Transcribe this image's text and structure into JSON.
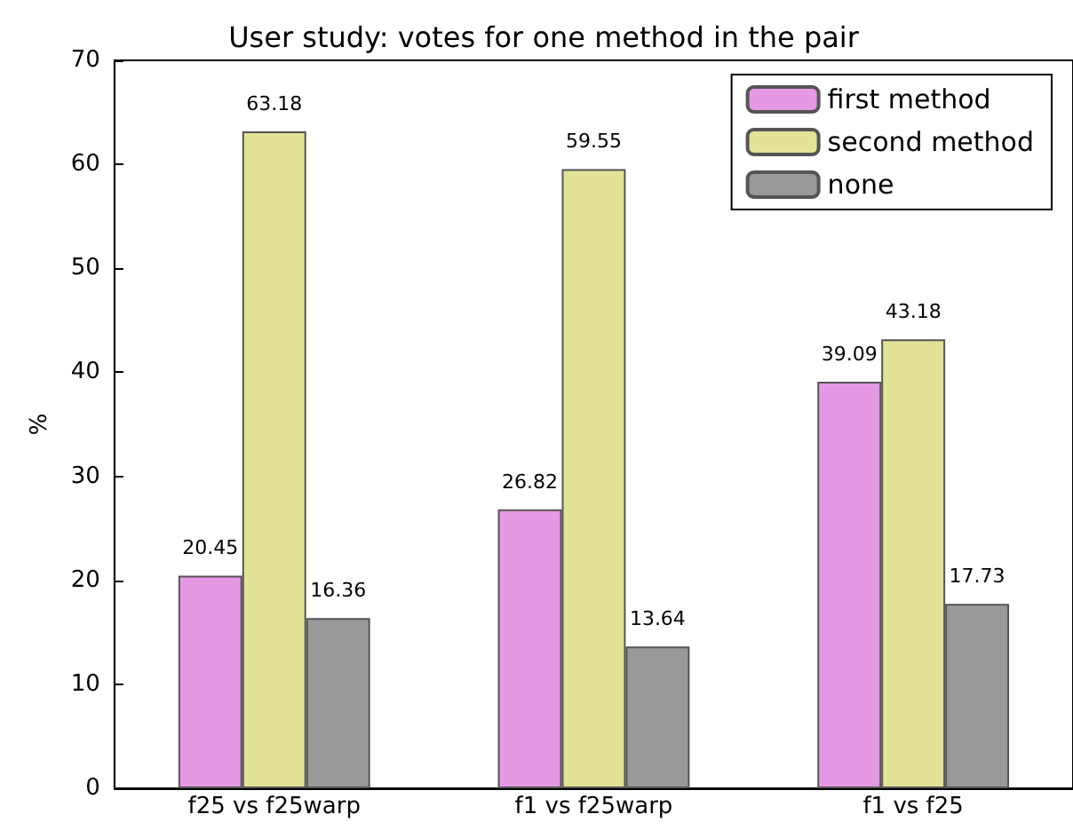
{
  "chart_data": {
    "type": "bar",
    "title": "User study: votes for one method in the pair",
    "ylabel": "%",
    "categories": [
      "f25 vs f25warp",
      "f1 vs f25warp",
      "f1 vs f25"
    ],
    "series": [
      {
        "name": "first method",
        "color": "#e599e3",
        "values": [
          20.45,
          26.82,
          39.09
        ]
      },
      {
        "name": "second method",
        "color": "#e3e397",
        "values": [
          63.18,
          59.55,
          43.18
        ]
      },
      {
        "name": "none",
        "color": "#999999",
        "values": [
          16.36,
          13.64,
          17.73
        ]
      }
    ],
    "ylim": [
      0,
      70
    ],
    "yticks": [
      0,
      10,
      20,
      30,
      40,
      50,
      60,
      70
    ],
    "grid": false,
    "legend": "top right",
    "data_labels": true
  }
}
